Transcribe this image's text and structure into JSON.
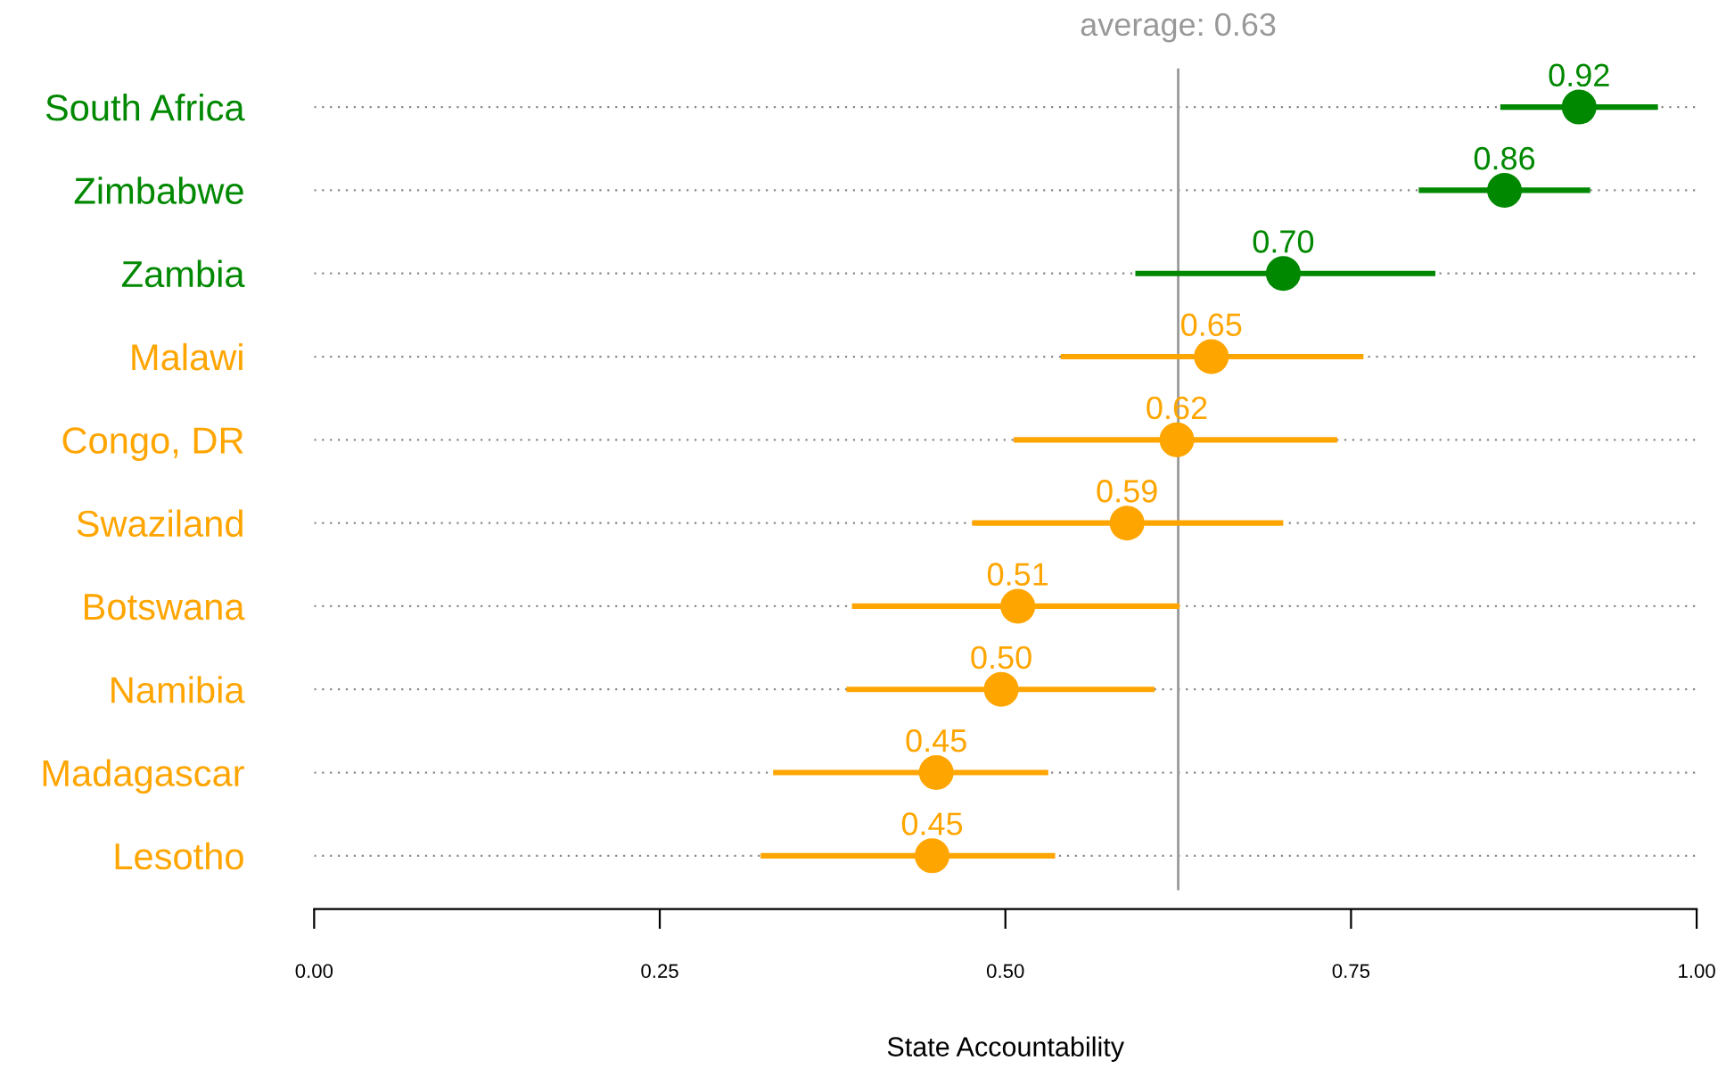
{
  "chart_data": {
    "type": "scatter",
    "orientation": "horizontal",
    "xlabel": "State Accountability",
    "categories": [
      "South Africa",
      "Zimbabwe",
      "Zambia",
      "Malawi",
      "Congo, DR",
      "Swaziland",
      "Botswana",
      "Namibia",
      "Madagascar",
      "Lesotho"
    ],
    "values": [
      0.915,
      0.861,
      0.701,
      0.649,
      0.624,
      0.588,
      0.509,
      0.497,
      0.45,
      0.447
    ],
    "errors": [
      [
        0.858,
        0.972
      ],
      [
        0.799,
        0.923
      ],
      [
        0.594,
        0.811
      ],
      [
        0.54,
        0.759
      ],
      [
        0.506,
        0.74
      ],
      [
        0.476,
        0.701
      ],
      [
        0.389,
        0.626
      ],
      [
        0.385,
        0.608
      ],
      [
        0.332,
        0.531
      ],
      [
        0.323,
        0.536
      ]
    ],
    "value_labels": [
      "0.92",
      "0.86",
      "0.70",
      "0.65",
      "0.62",
      "0.59",
      "0.51",
      "0.50",
      "0.45",
      "0.45"
    ],
    "colors": [
      "#008800",
      "#008800",
      "#008800",
      "#ffa500",
      "#ffa500",
      "#ffa500",
      "#ffa500",
      "#ffa500",
      "#ffa500",
      "#ffa500"
    ],
    "xlim": [
      0,
      1
    ],
    "xticks": [
      {
        "value": 0,
        "label": "0.00"
      },
      {
        "value": 0.25,
        "label": "0.25"
      },
      {
        "value": 0.5,
        "label": "0.50"
      },
      {
        "value": 0.75,
        "label": "0.75"
      },
      {
        "value": 1,
        "label": "1.00"
      }
    ],
    "ref_lines": [
      {
        "axis": "x",
        "value": 0.625,
        "label": "average: 0.63",
        "color": "#999999"
      }
    ],
    "grid": "y",
    "marker": "circle"
  }
}
